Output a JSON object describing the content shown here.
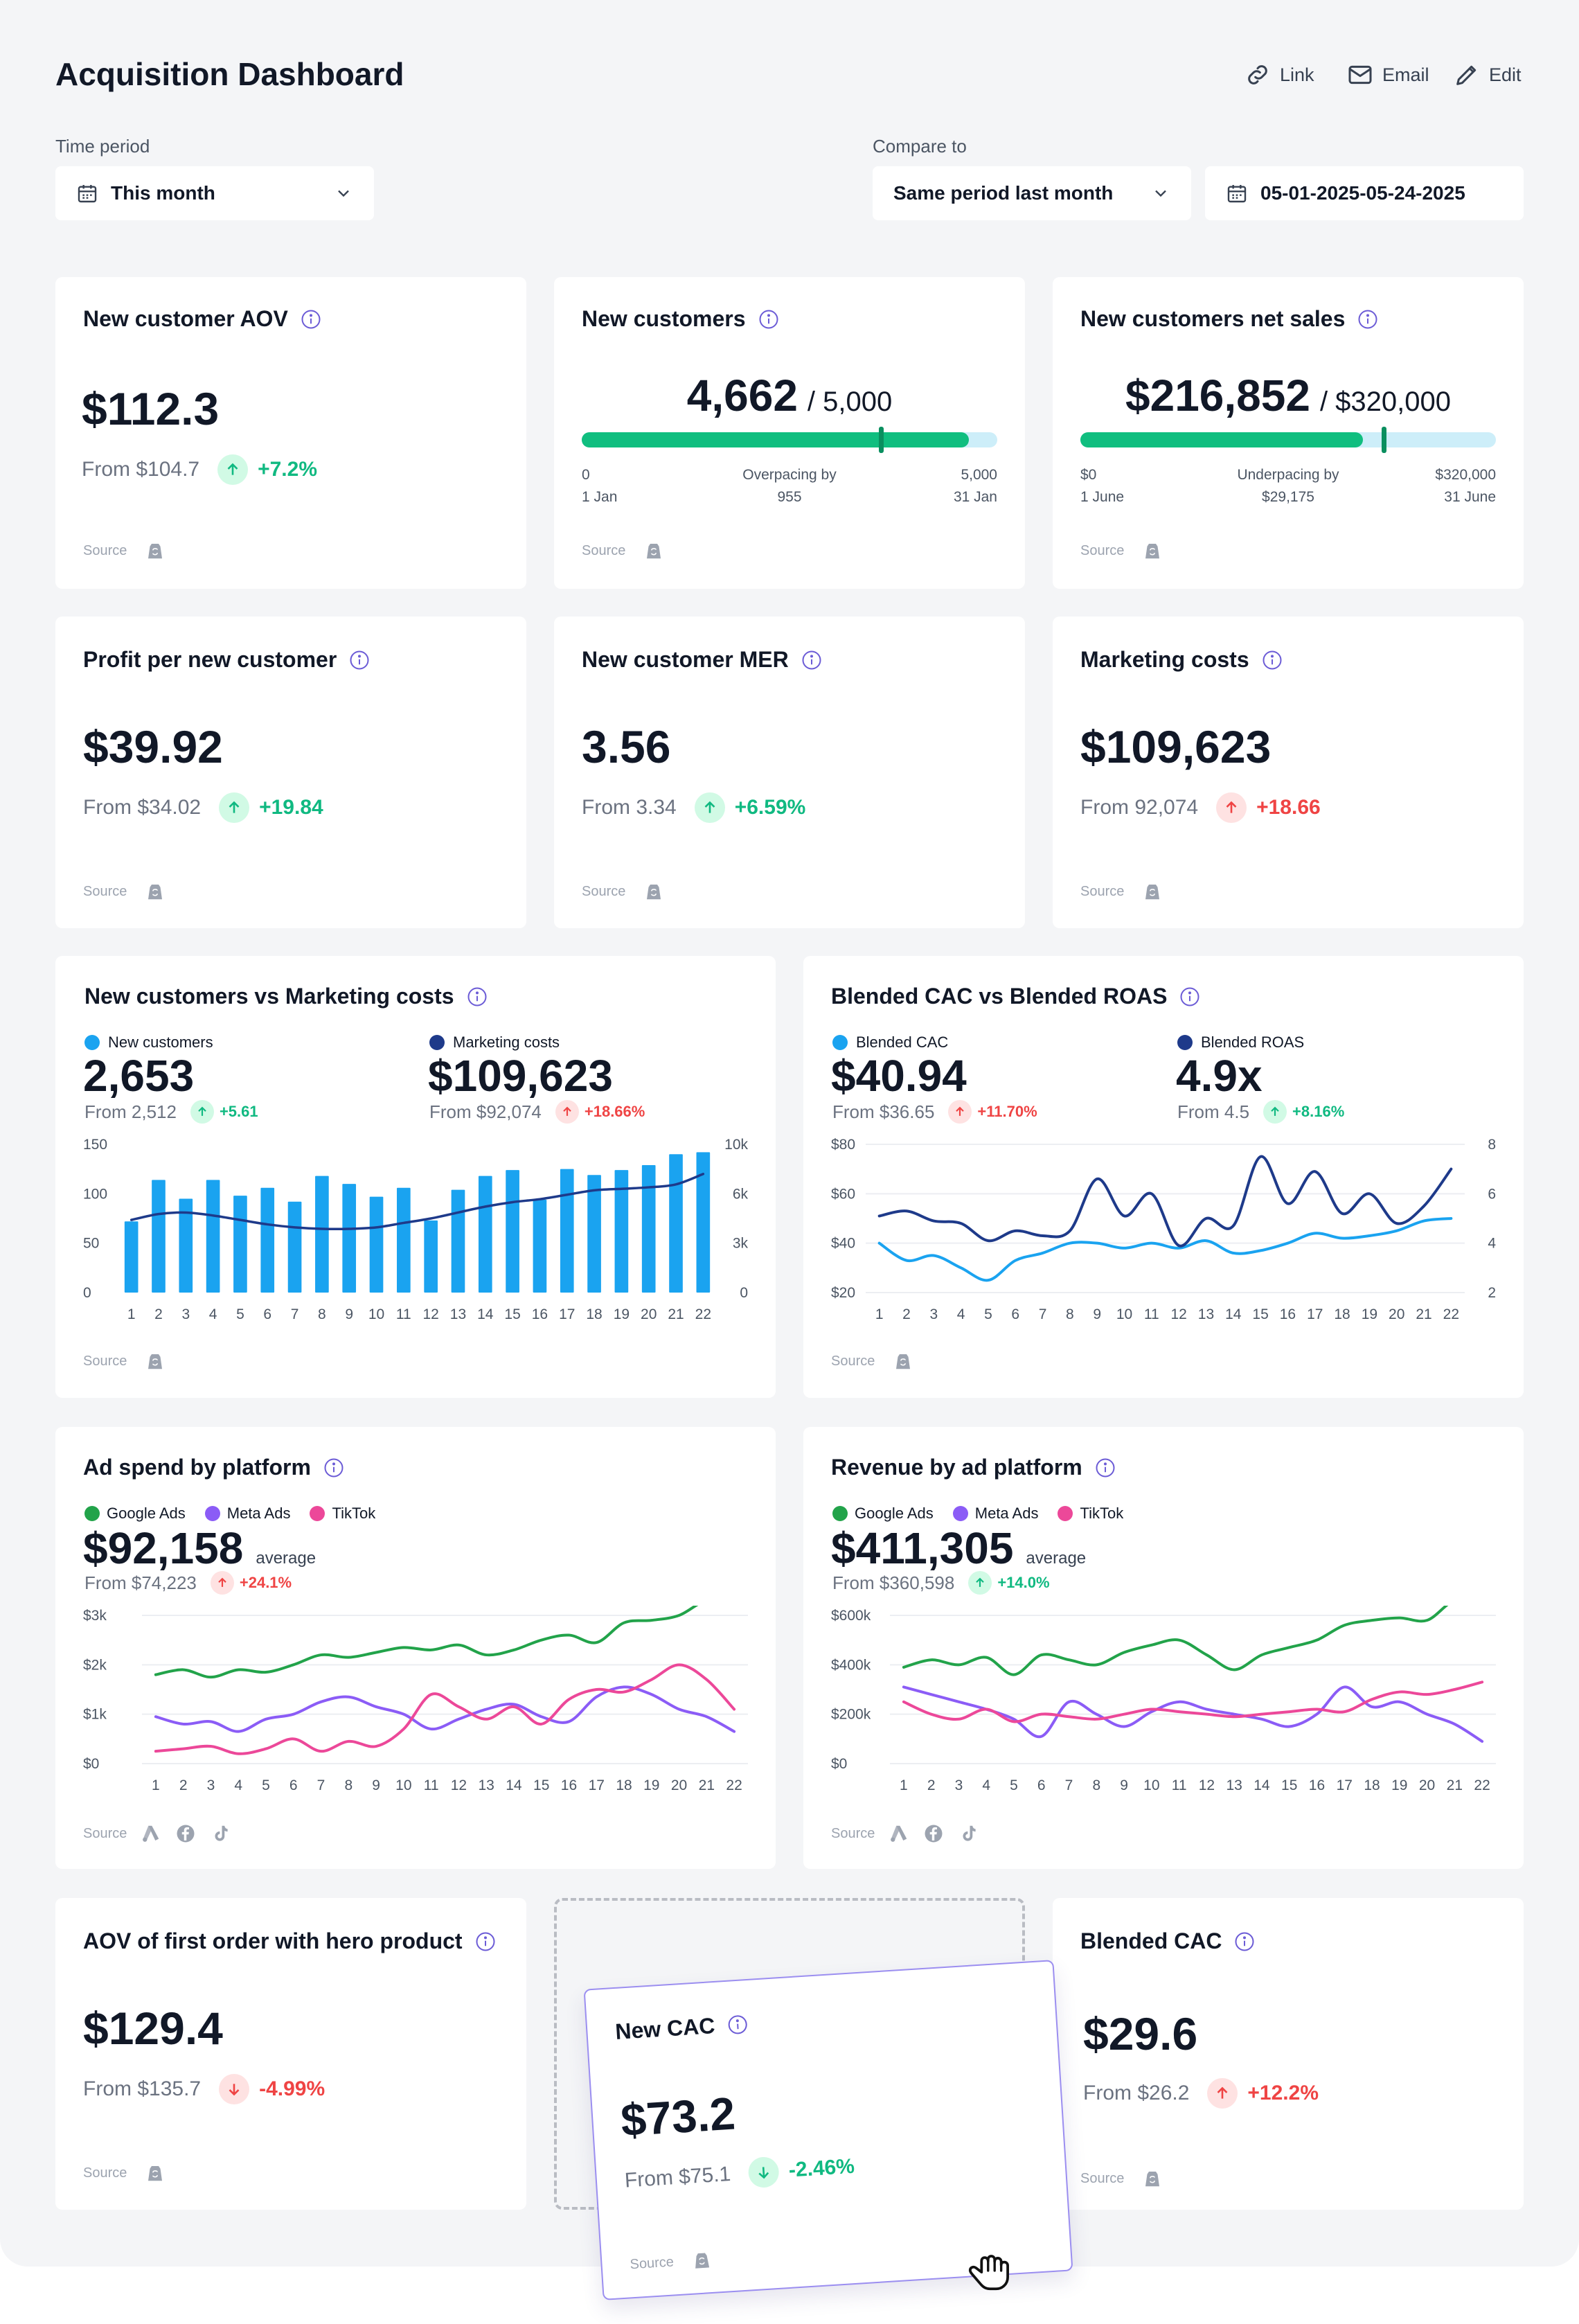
{
  "header": {
    "title": "Acquisition Dashboard",
    "actions": [
      {
        "label": "Link",
        "icon": "link-icon"
      },
      {
        "label": "Email",
        "icon": "mail-icon"
      },
      {
        "label": "Edit",
        "icon": "pencil-icon"
      }
    ]
  },
  "filters": {
    "time_period_label": "Time period",
    "time_period_value": "This month",
    "compare_label": "Compare to",
    "compare_value": "Same period last month",
    "date_range": "05-01-2025-05-24-2025"
  },
  "colors": {
    "positive": "#10b981",
    "negative": "#ef4444",
    "bar_blue": "#1aa3f0",
    "navy": "#1e3a8a",
    "google": "#22a34a",
    "meta": "#8b5cf6",
    "tiktok": "#ec4899",
    "progress": "#10be7f",
    "progress_track": "#cdeef9"
  },
  "source_label": "Source",
  "cards": {
    "aov": {
      "title": "New customer AOV",
      "value": "$112.3",
      "from": "From $104.7",
      "change": "+7.2%"
    },
    "new_customers": {
      "title": "New customers",
      "value": "4,662",
      "target": "/ 5,000",
      "progress": 0.932,
      "marker": 0.72,
      "start": "0",
      "start_date": "1 Jan",
      "mid_line1": "Overpacing by",
      "mid_line2": "955",
      "end": "5,000",
      "end_date": "31 Jan"
    },
    "net_sales": {
      "title": "New customers net sales",
      "value": "$216,852",
      "target": "/ $320,000",
      "progress": 0.68,
      "marker": 0.73,
      "start": "$0",
      "start_date": "1 June",
      "mid_line1": "Underpacing by",
      "mid_line2": "$29,175",
      "end": "$320,000",
      "end_date": "31 June"
    },
    "profit": {
      "title": "Profit per new customer",
      "value": "$39.92",
      "from": "From $34.02",
      "change": "+19.84"
    },
    "mer": {
      "title": "New customer MER",
      "value": "3.56",
      "from": "From 3.34",
      "change": "+6.59%"
    },
    "marketing": {
      "title": "Marketing costs",
      "value": "$109,623",
      "from": "From 92,074",
      "change": "+18.66"
    },
    "hero_aov": {
      "title": "AOV of first order with hero product",
      "value": "$129.4",
      "from": "From $135.7",
      "change": "-4.99%"
    },
    "new_cac": {
      "title": "New CAC",
      "value": "$73.2",
      "from": "From $75.1",
      "change": "-2.46%"
    },
    "blended_cac": {
      "title": "Blended CAC",
      "value": "$29.6",
      "from": "From $26.2",
      "change": "+12.2%"
    }
  },
  "combo1": {
    "title": "New customers vs Marketing costs",
    "left": {
      "legend": "New customers",
      "value": "2,653",
      "from": "From 2,512",
      "change": "+5.61"
    },
    "right": {
      "legend": "Marketing costs",
      "value": "$109,623",
      "from": "From $92,074",
      "change": "+18.66%"
    }
  },
  "combo2": {
    "title": "Blended CAC vs Blended ROAS",
    "left": {
      "legend": "Blended CAC",
      "value": "$40.94",
      "from": "From $36.65",
      "change": "+11.70%"
    },
    "right": {
      "legend": "Blended ROAS",
      "value": "4.9x",
      "from": "From 4.5",
      "change": "+8.16%"
    }
  },
  "adspend": {
    "title": "Ad spend by platform",
    "value": "$92,158",
    "suffix": "average",
    "from": "From $74,223",
    "change": "+24.1%"
  },
  "revenue": {
    "title": "Revenue by ad platform",
    "value": "$411,305",
    "suffix": "average",
    "from": "From $360,598",
    "change": "+14.0%"
  },
  "platform_legend": [
    "Google Ads",
    "Meta Ads",
    "TikTok"
  ],
  "chart_data": [
    {
      "type": "bar",
      "title": "New customers vs Marketing costs",
      "categories": [
        "1",
        "2",
        "3",
        "4",
        "5",
        "6",
        "7",
        "8",
        "9",
        "10",
        "11",
        "12",
        "13",
        "14",
        "15",
        "16",
        "17",
        "18",
        "19",
        "20",
        "21",
        "22"
      ],
      "ylim": [
        0,
        150
      ],
      "y_ticks": [
        "150",
        "100",
        "50",
        "0"
      ],
      "y2lim": [
        0,
        10000
      ],
      "y2_ticks": [
        "10k",
        "6k",
        "3k",
        "0"
      ],
      "series": [
        {
          "name": "New customers",
          "type": "bar",
          "axis": "left",
          "values": [
            72,
            114,
            95,
            114,
            98,
            106,
            92,
            118,
            110,
            97,
            106,
            73,
            104,
            118,
            124,
            94,
            125,
            119,
            124,
            129,
            140,
            142
          ]
        },
        {
          "name": "Marketing costs",
          "type": "line",
          "axis": "right",
          "values": [
            4900,
            5300,
            5400,
            5200,
            4900,
            4600,
            4400,
            4300,
            4300,
            4400,
            4700,
            5000,
            5400,
            5800,
            6100,
            6300,
            6600,
            6900,
            7000,
            7100,
            7300,
            8000
          ]
        }
      ]
    },
    {
      "type": "line",
      "title": "Blended CAC vs Blended ROAS",
      "categories": [
        "1",
        "2",
        "3",
        "4",
        "5",
        "6",
        "7",
        "8",
        "9",
        "10",
        "11",
        "12",
        "13",
        "14",
        "15",
        "16",
        "17",
        "18",
        "19",
        "20",
        "21",
        "22"
      ],
      "ylim": [
        20,
        80
      ],
      "y_ticks": [
        "$80",
        "$60",
        "$40",
        "$20"
      ],
      "y2lim": [
        2,
        8
      ],
      "y2_ticks": [
        "8",
        "6",
        "4",
        "2"
      ],
      "series": [
        {
          "name": "Blended CAC",
          "axis": "left",
          "values": [
            40,
            33,
            35,
            30,
            25,
            33,
            36,
            40,
            40,
            38,
            40,
            38,
            41,
            36,
            37,
            40,
            44,
            42,
            43,
            45,
            49,
            50
          ]
        },
        {
          "name": "Blended ROAS",
          "axis": "right",
          "values": [
            5.1,
            5.3,
            4.9,
            4.8,
            4.1,
            4.5,
            4.3,
            4.5,
            6.6,
            5.1,
            6.0,
            3.9,
            5.0,
            4.7,
            7.5,
            5.6,
            6.9,
            5.2,
            6.0,
            4.8,
            5.5,
            7.0
          ]
        }
      ]
    },
    {
      "type": "line",
      "title": "Ad spend by platform",
      "categories": [
        "1",
        "2",
        "3",
        "4",
        "5",
        "6",
        "7",
        "8",
        "9",
        "10",
        "11",
        "12",
        "13",
        "14",
        "15",
        "16",
        "17",
        "18",
        "19",
        "20",
        "21",
        "22"
      ],
      "ylim": [
        0,
        3000
      ],
      "y_ticks": [
        "$3k",
        "$2k",
        "$1k",
        "$0"
      ],
      "series": [
        {
          "name": "Google Ads",
          "values": [
            1800,
            1900,
            1750,
            1900,
            1850,
            2000,
            2200,
            2150,
            2250,
            2350,
            2300,
            2400,
            2200,
            2300,
            2500,
            2600,
            2450,
            2850,
            2900,
            3000,
            3300,
            3250
          ]
        },
        {
          "name": "Meta Ads",
          "values": [
            950,
            800,
            850,
            650,
            900,
            1000,
            1250,
            1350,
            1150,
            1000,
            700,
            900,
            1100,
            1200,
            950,
            850,
            1350,
            1550,
            1400,
            1100,
            950,
            650
          ]
        },
        {
          "name": "TikTok",
          "values": [
            250,
            300,
            350,
            200,
            300,
            500,
            250,
            450,
            350,
            700,
            1400,
            1150,
            900,
            1150,
            800,
            1300,
            1500,
            1450,
            1700,
            2000,
            1700,
            1100
          ]
        }
      ]
    },
    {
      "type": "line",
      "title": "Revenue by ad platform",
      "categories": [
        "1",
        "2",
        "3",
        "4",
        "5",
        "6",
        "7",
        "8",
        "9",
        "10",
        "11",
        "12",
        "13",
        "14",
        "15",
        "16",
        "17",
        "18",
        "19",
        "20",
        "21",
        "22"
      ],
      "ylim": [
        0,
        600000
      ],
      "y_ticks": [
        "$600k",
        "$400k",
        "$200k",
        "$0"
      ],
      "series": [
        {
          "name": "Google Ads",
          "values": [
            390000,
            420000,
            400000,
            430000,
            360000,
            440000,
            420000,
            400000,
            450000,
            480000,
            500000,
            440000,
            380000,
            440000,
            470000,
            500000,
            560000,
            580000,
            590000,
            580000,
            660000,
            650000
          ]
        },
        {
          "name": "Meta Ads",
          "values": [
            310000,
            280000,
            250000,
            220000,
            180000,
            110000,
            250000,
            200000,
            150000,
            210000,
            250000,
            220000,
            200000,
            180000,
            150000,
            200000,
            310000,
            230000,
            250000,
            200000,
            160000,
            90000
          ]
        },
        {
          "name": "TikTok",
          "values": [
            250000,
            200000,
            180000,
            220000,
            170000,
            200000,
            190000,
            180000,
            200000,
            220000,
            210000,
            200000,
            190000,
            200000,
            210000,
            220000,
            210000,
            260000,
            290000,
            280000,
            300000,
            330000
          ]
        }
      ]
    }
  ]
}
